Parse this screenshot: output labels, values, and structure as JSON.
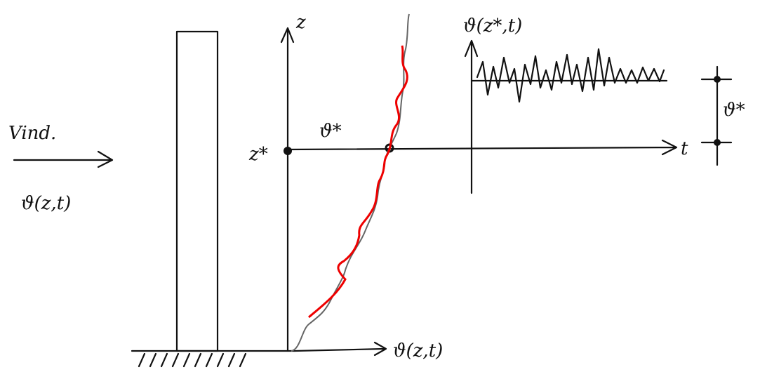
{
  "labels": {
    "wind": "Vind.",
    "wind_speed": "ϑ(z,t)",
    "z_axis": "z",
    "z_star": "z*",
    "v_star": "ϑ*",
    "signal_title": "ϑ(z*,t)",
    "t_axis": "t",
    "v_star_right": "ϑ*",
    "profile_axis": "ϑ(z,t)"
  }
}
